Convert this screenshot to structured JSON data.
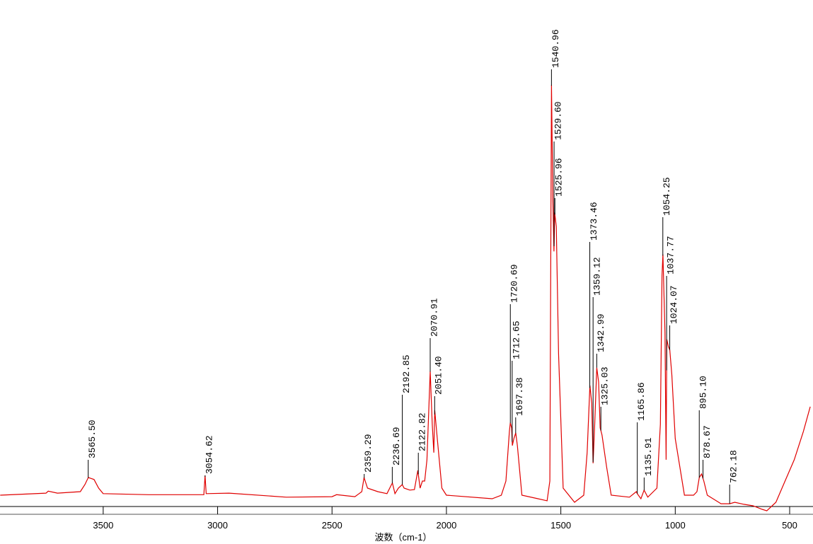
{
  "chart_data": {
    "type": "line",
    "x_label": "波数（cm-1）",
    "xlim": [
      3951,
      398
    ],
    "ylim": [
      0,
      100
    ],
    "xticks": [
      3500,
      3000,
      2500,
      2000,
      1500,
      1000,
      500
    ],
    "color": "#e00000",
    "x": [
      3950,
      3750,
      3740,
      3700,
      3600,
      3580,
      3565,
      3540,
      3520,
      3500,
      3300,
      3060,
      3055,
      3050,
      2950,
      2700,
      2500,
      2480,
      2400,
      2370,
      2360,
      2345,
      2300,
      2260,
      2240,
      2236,
      2225,
      2210,
      2193,
      2185,
      2160,
      2140,
      2125,
      2115,
      2105,
      2095,
      2085,
      2071,
      2062,
      2055,
      2051,
      2040,
      2020,
      2000,
      1800,
      1760,
      1740,
      1725,
      1721,
      1715,
      1712,
      1705,
      1697,
      1690,
      1670,
      1600,
      1560,
      1548,
      1541,
      1535,
      1530,
      1527,
      1520,
      1510,
      1490,
      1440,
      1400,
      1385,
      1373,
      1365,
      1359,
      1352,
      1343,
      1335,
      1328,
      1320,
      1300,
      1280,
      1200,
      1170,
      1166,
      1150,
      1136,
      1120,
      1080,
      1065,
      1058,
      1054,
      1045,
      1040,
      1037,
      1030,
      1024,
      1015,
      1000,
      960,
      920,
      905,
      895,
      885,
      875,
      860,
      800,
      762,
      740,
      700,
      660,
      620,
      600,
      560,
      520,
      480,
      440,
      410
    ],
    "values": [
      2.1,
      2.5,
      2.9,
      2.5,
      2.8,
      4.2,
      5.6,
      5.2,
      3.5,
      2.4,
      2.2,
      2.2,
      6.0,
      2.4,
      2.5,
      1.7,
      1.8,
      2.2,
      1.8,
      2.8,
      5.6,
      3.5,
      2.8,
      2.4,
      4.2,
      4.5,
      2.4,
      3.5,
      4.2,
      3.5,
      3.1,
      3.2,
      7.0,
      3.5,
      4.9,
      4.9,
      9.1,
      26.6,
      16.1,
      10.5,
      18.9,
      13.3,
      3.5,
      2.1,
      1.4,
      2.1,
      4.9,
      14.7,
      16.4,
      15.4,
      11.9,
      13.3,
      14.4,
      11.9,
      2.1,
      1.4,
      1.0,
      4.9,
      83.2,
      60.8,
      50.3,
      58.0,
      55.2,
      30.1,
      3.5,
      0.7,
      2.1,
      10.5,
      23.8,
      20.3,
      8.4,
      16.1,
      27.3,
      24.5,
      15.4,
      14.0,
      7.7,
      2.1,
      1.7,
      2.8,
      2.4,
      1.4,
      3.1,
      1.7,
      3.5,
      16.1,
      45.5,
      49.7,
      34.3,
      9.1,
      32.9,
      31.5,
      30.8,
      25.9,
      13.3,
      2.1,
      2.1,
      2.8,
      5.6,
      6.3,
      4.9,
      2.1,
      0.4,
      0.4,
      0.7,
      0.3,
      0,
      -0.7,
      -1.0,
      0.7,
      4.9,
      9.1,
      14.7,
      19.6
    ],
    "peaks": [
      {
        "value": 3565.5,
        "label": "3565.50"
      },
      {
        "value": 3054.62,
        "label": "3054.62"
      },
      {
        "value": 2359.29,
        "label": "2359.29"
      },
      {
        "value": 2236.69,
        "label": "2236.69"
      },
      {
        "value": 2192.85,
        "label": "2192.85"
      },
      {
        "value": 2122.82,
        "label": "2122.82"
      },
      {
        "value": 2070.91,
        "label": "2070.91"
      },
      {
        "value": 2051.4,
        "label": "2051.40"
      },
      {
        "value": 1720.69,
        "label": "1720.69"
      },
      {
        "value": 1712.65,
        "label": "1712.65"
      },
      {
        "value": 1697.38,
        "label": "1697.38"
      },
      {
        "value": 1540.96,
        "label": "1540.96"
      },
      {
        "value": 1529.6,
        "label": "1529.60"
      },
      {
        "value": 1525.96,
        "label": "1525.96"
      },
      {
        "value": 1373.46,
        "label": "1373.46"
      },
      {
        "value": 1359.12,
        "label": "1359.12"
      },
      {
        "value": 1342.99,
        "label": "1342.99"
      },
      {
        "value": 1325.03,
        "label": "1325.03"
      },
      {
        "value": 1165.86,
        "label": "1165.86"
      },
      {
        "value": 1135.91,
        "label": "1135.91"
      },
      {
        "value": 1054.25,
        "label": "1054.25"
      },
      {
        "value": 1037.77,
        "label": "1037.77"
      },
      {
        "value": 1024.07,
        "label": "1024.07"
      },
      {
        "value": 895.1,
        "label": "895.10"
      },
      {
        "value": 878.67,
        "label": "878.67"
      },
      {
        "value": 762.18,
        "label": "762.18"
      }
    ]
  }
}
